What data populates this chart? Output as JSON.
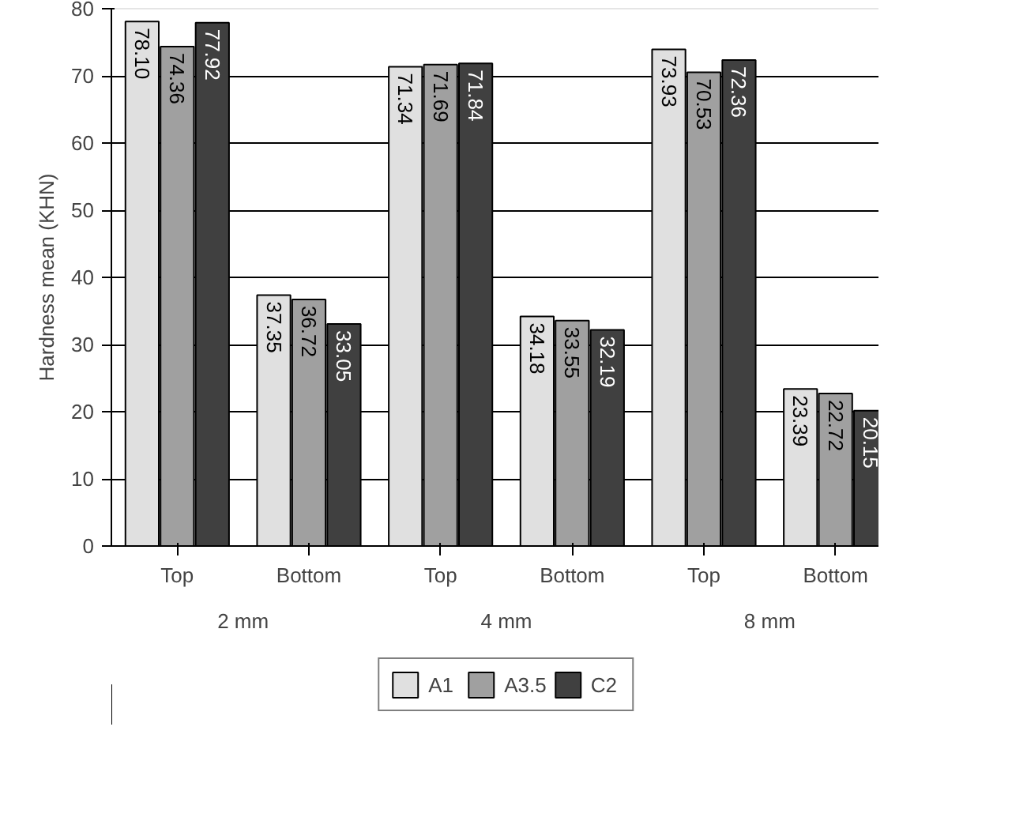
{
  "chart_data": {
    "type": "bar",
    "ylabel": "Hardness mean (KHN)",
    "categories": [
      "Top",
      "Bottom",
      "Top",
      "Bottom",
      "Top",
      "Bottom"
    ],
    "annotations": [
      "2 mm",
      "4 mm",
      "8 mm"
    ],
    "series": [
      {
        "name": "A1",
        "color": "#e0e0e0",
        "values": [
          78.1,
          37.35,
          71.34,
          34.18,
          73.93,
          23.39
        ],
        "value_labels": [
          "78.10",
          "37.35",
          "71.34",
          "34.18",
          "73.93",
          "23.39"
        ]
      },
      {
        "name": "A3.5",
        "color": "#a0a0a0",
        "values": [
          74.36,
          36.72,
          71.69,
          33.55,
          70.53,
          22.72
        ],
        "value_labels": [
          "74.36",
          "36.72",
          "71.69",
          "33.55",
          "70.53",
          "22.72"
        ]
      },
      {
        "name": "C2",
        "color": "#404040",
        "values": [
          77.92,
          33.05,
          71.84,
          32.19,
          72.36,
          20.15
        ],
        "value_labels": [
          "77.92",
          "33.05",
          "71.84",
          "32.19",
          "72.36",
          "20.15"
        ]
      }
    ],
    "ylim": [
      0,
      80
    ],
    "yticks": [
      0,
      10,
      20,
      30,
      40,
      50,
      60,
      70,
      80
    ],
    "grid": "y",
    "legend": "bottom"
  }
}
